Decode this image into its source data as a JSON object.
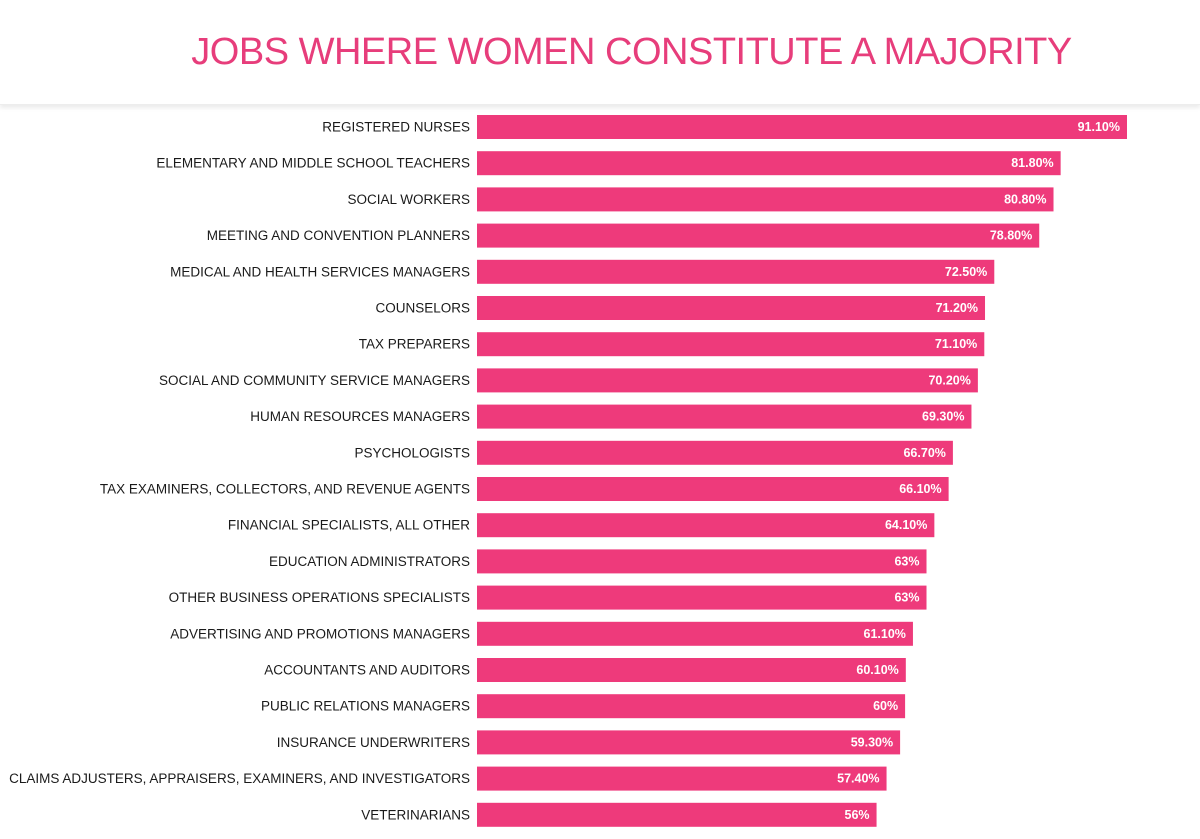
{
  "colors": {
    "bar": "#ee3a7b",
    "title": "#e73d7b",
    "label": "#1a1a1a",
    "value_label": "#ffffff"
  },
  "chart_data": {
    "type": "bar",
    "orientation": "horizontal",
    "title": "JOBS WHERE WOMEN CONSTITUTE A MAJORITY",
    "xlabel": "",
    "ylabel": "",
    "xlim": [
      0,
      100
    ],
    "grid": false,
    "legend": "none",
    "categories": [
      "REGISTERED NURSES",
      "ELEMENTARY AND MIDDLE SCHOOL TEACHERS",
      "SOCIAL WORKERS",
      "MEETING AND CONVENTION PLANNERS",
      "MEDICAL AND HEALTH SERVICES MANAGERS",
      "COUNSELORS",
      "TAX PREPARERS",
      "SOCIAL AND COMMUNITY SERVICE MANAGERS",
      "HUMAN RESOURCES MANAGERS",
      "PSYCHOLOGISTS",
      "TAX EXAMINERS, COLLECTORS, AND REVENUE AGENTS",
      "FINANCIAL SPECIALISTS, ALL OTHER",
      "EDUCATION ADMINISTRATORS",
      "OTHER BUSINESS OPERATIONS SPECIALISTS",
      "ADVERTISING AND PROMOTIONS MANAGERS",
      "ACCOUNTANTS AND AUDITORS",
      "PUBLIC RELATIONS MANAGERS",
      "INSURANCE UNDERWRITERS",
      "CLAIMS ADJUSTERS, APPRAISERS, EXAMINERS, AND INVESTIGATORS",
      "VETERINARIANS"
    ],
    "values": [
      91.1,
      81.8,
      80.8,
      78.8,
      72.5,
      71.2,
      71.1,
      70.2,
      69.3,
      66.7,
      66.1,
      64.1,
      63,
      63,
      61.1,
      60.1,
      60,
      59.3,
      57.4,
      56
    ],
    "value_labels": [
      "91.10%",
      "81.80%",
      "80.80%",
      "78.80%",
      "72.50%",
      "71.20%",
      "71.10%",
      "70.20%",
      "69.30%",
      "66.70%",
      "66.10%",
      "64.10%",
      "63%",
      "63%",
      "61.10%",
      "60.10%",
      "60%",
      "59.30%",
      "57.40%",
      "56%"
    ]
  }
}
